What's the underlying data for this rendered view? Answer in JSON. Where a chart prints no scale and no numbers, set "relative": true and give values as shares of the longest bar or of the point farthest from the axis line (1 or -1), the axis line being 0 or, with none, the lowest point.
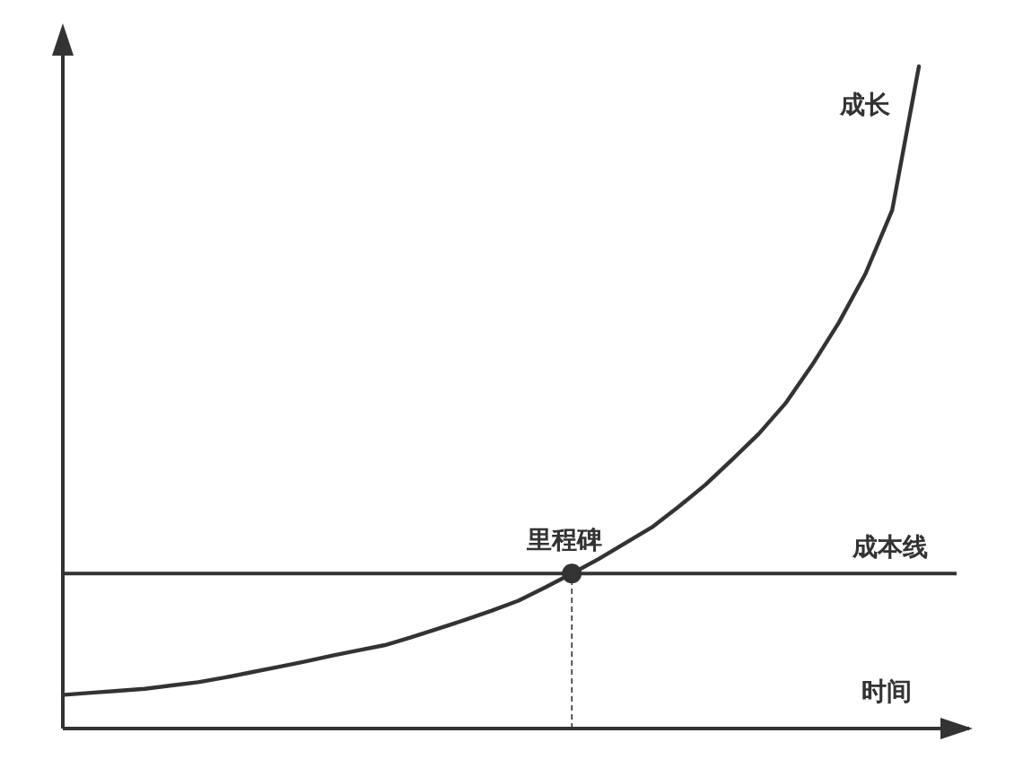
{
  "chart_data": {
    "type": "line",
    "relative": true,
    "xlabel": "时间",
    "categories": [
      null,
      null,
      null,
      null,
      null,
      null,
      null,
      null,
      null,
      null,
      null,
      null,
      null,
      null,
      null,
      null,
      null,
      null,
      null,
      null,
      null,
      null,
      null,
      null,
      null,
      null,
      null,
      null,
      null,
      null,
      null,
      null,
      null
    ],
    "series": [
      {
        "name": "成长",
        "color": "#333333",
        "values": [
          0.051,
          0.054,
          0.057,
          0.06,
          0.065,
          0.07,
          0.077,
          0.085,
          0.093,
          0.101,
          0.11,
          0.118,
          0.126,
          0.138,
          0.151,
          0.164,
          0.178,
          0.193,
          0.213,
          0.234,
          0.256,
          0.28,
          0.304,
          0.335,
          0.368,
          0.406,
          0.445,
          0.491,
          0.549,
          0.613,
          0.687,
          0.783,
          1.0
        ]
      }
    ],
    "ref_lines": [
      {
        "axis": "y",
        "value": 0.234,
        "label": "成本线",
        "color": "#333333"
      }
    ],
    "annotations": [
      {
        "text": "里程碑",
        "y": 0.234
      }
    ]
  }
}
